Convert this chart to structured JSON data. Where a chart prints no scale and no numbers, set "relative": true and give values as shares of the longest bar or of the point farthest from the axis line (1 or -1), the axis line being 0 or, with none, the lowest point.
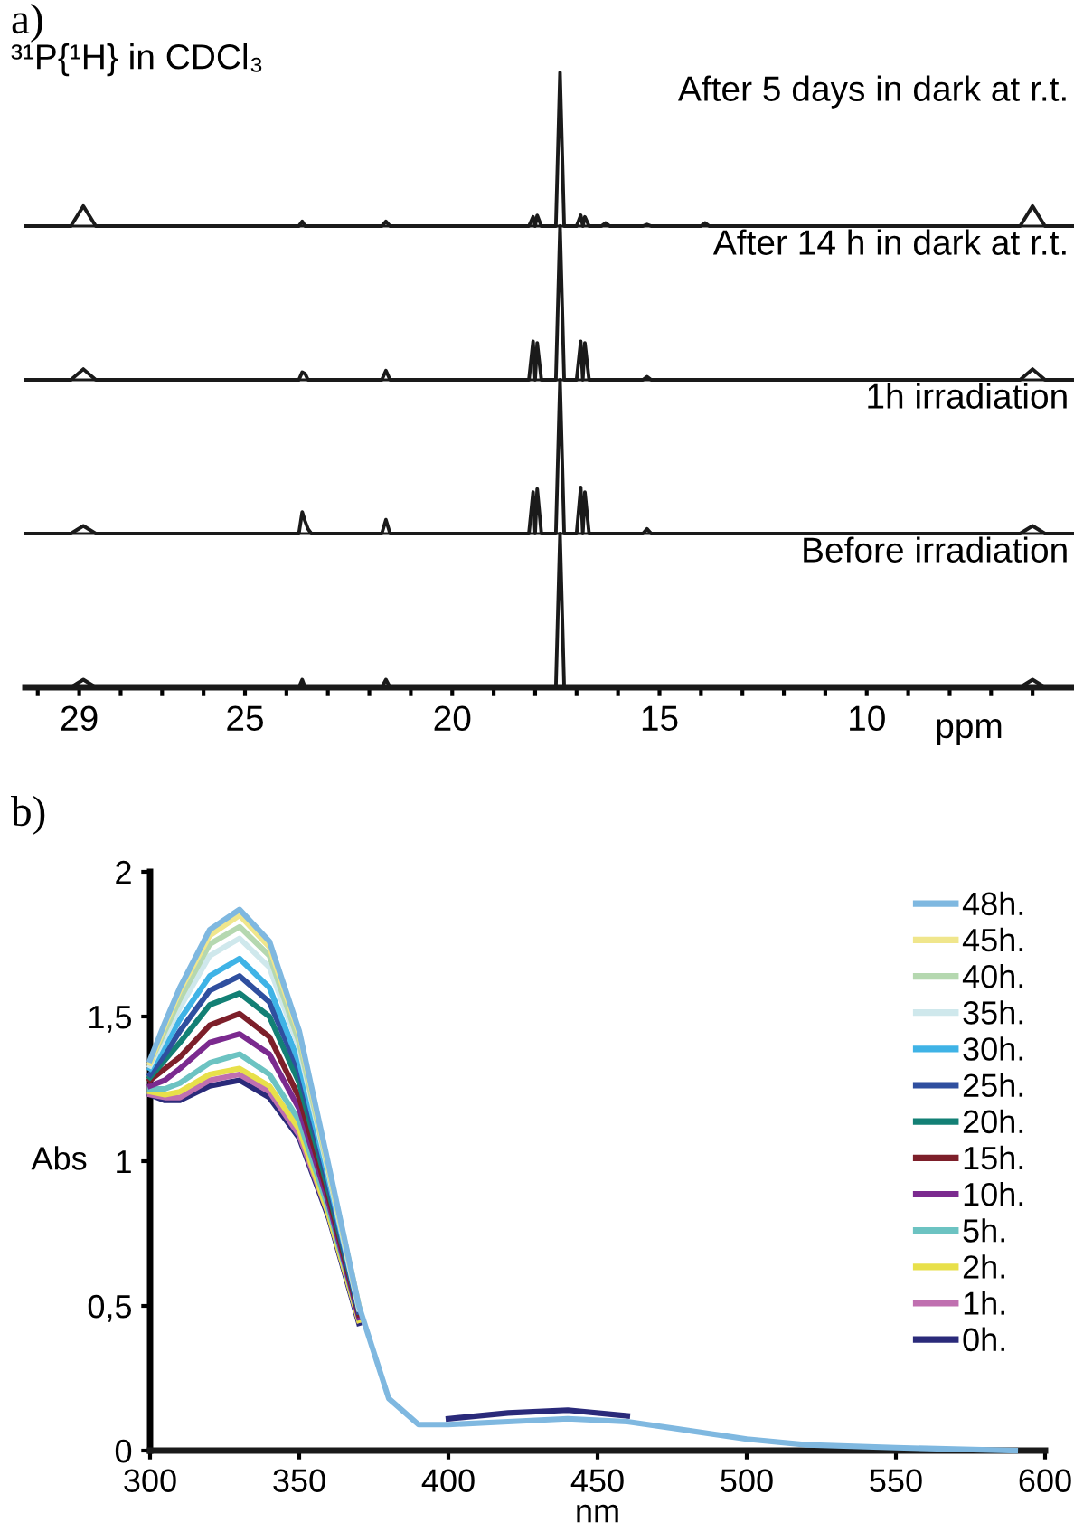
{
  "chart_data": [
    {
      "type": "line",
      "relative": true,
      "title": "a)",
      "subtitle": "³¹P{¹H} in CDCl₃",
      "annotations": [
        "After 5 days in dark at r.t."
      ],
      "tick_labels": false,
      "xlim": [
        30.3,
        5.0
      ],
      "x": [
        30.3,
        29.2,
        28.9,
        28.6,
        23.7,
        23.62,
        23.55,
        23.48,
        23.4,
        21.7,
        21.6,
        21.5,
        18.15,
        18.05,
        18.0,
        17.95,
        17.85,
        17.5,
        17.4,
        17.3,
        17.0,
        16.9,
        16.85,
        16.8,
        16.7,
        16.4,
        16.3,
        16.2,
        15.4,
        15.3,
        15.2,
        14.0,
        13.9,
        13.8,
        6.3,
        6.0,
        5.7,
        5.0
      ],
      "series": [
        {
          "color": "#1a1a1a",
          "values": [
            0,
            0,
            0.13,
            0,
            0,
            0.03,
            0,
            0,
            0,
            0,
            0.03,
            0,
            0,
            0.06,
            0,
            0.07,
            0,
            0,
            1,
            0,
            0,
            0.07,
            0,
            0.06,
            0,
            0,
            0.02,
            0,
            0,
            0.01,
            0,
            0,
            0.02,
            0,
            0,
            0.13,
            0,
            0
          ]
        }
      ]
    },
    {
      "type": "line",
      "relative": true,
      "annotations": [
        "After 14 h in dark at r.t."
      ],
      "tick_labels": false,
      "xlim": [
        30.3,
        5.0
      ],
      "x": [
        30.3,
        29.2,
        28.9,
        28.6,
        23.7,
        23.62,
        23.55,
        23.48,
        23.4,
        21.7,
        21.6,
        21.5,
        18.15,
        18.05,
        18.0,
        17.95,
        17.85,
        17.5,
        17.4,
        17.3,
        17.0,
        16.9,
        16.85,
        16.8,
        16.7,
        16.4,
        16.3,
        16.2,
        15.4,
        15.3,
        15.2,
        14.0,
        13.9,
        13.8,
        6.3,
        6.0,
        5.7,
        5.0
      ],
      "series": [
        {
          "color": "#1a1a1a",
          "values": [
            0,
            0,
            0.07,
            0,
            0,
            0.05,
            0.04,
            0,
            0,
            0,
            0.06,
            0,
            0,
            0.25,
            0,
            0.24,
            0,
            0,
            1,
            0,
            0,
            0.25,
            0,
            0.24,
            0,
            0,
            0,
            0,
            0,
            0.02,
            0,
            0,
            0,
            0,
            0,
            0.07,
            0,
            0
          ]
        }
      ]
    },
    {
      "type": "line",
      "relative": true,
      "annotations": [
        "1h irradiation"
      ],
      "tick_labels": false,
      "xlim": [
        30.3,
        5.0
      ],
      "x": [
        30.3,
        29.2,
        28.9,
        28.6,
        23.7,
        23.62,
        23.55,
        23.48,
        23.4,
        21.7,
        21.6,
        21.5,
        18.15,
        18.05,
        18.0,
        17.95,
        17.85,
        17.5,
        17.4,
        17.3,
        17.0,
        16.9,
        16.85,
        16.8,
        16.7,
        16.4,
        16.3,
        16.2,
        15.4,
        15.3,
        15.2,
        14.0,
        13.9,
        13.8,
        6.3,
        6.0,
        5.7,
        5.0
      ],
      "series": [
        {
          "color": "#1a1a1a",
          "values": [
            0,
            0,
            0.05,
            0,
            0,
            0.14,
            0.08,
            0.03,
            0,
            0,
            0.09,
            0,
            0,
            0.27,
            0,
            0.29,
            0,
            0,
            1,
            0,
            0,
            0.3,
            0,
            0.27,
            0,
            0,
            0,
            0,
            0,
            0.03,
            0,
            0,
            0,
            0,
            0,
            0.05,
            0,
            0
          ]
        }
      ]
    },
    {
      "type": "line",
      "relative": true,
      "annotations": [
        "Before irradiation"
      ],
      "tick_labels": "x",
      "xlabel": "ppm",
      "xlim": [
        30.3,
        5.0
      ],
      "xticks": [
        {
          "value": 30,
          "label": null
        },
        29,
        {
          "value": 28,
          "label": null
        },
        {
          "value": 27,
          "label": null
        },
        {
          "value": 26,
          "label": null
        },
        25,
        {
          "value": 24,
          "label": null
        },
        {
          "value": 23,
          "label": null
        },
        {
          "value": 22,
          "label": null
        },
        {
          "value": 21,
          "label": null
        },
        20,
        {
          "value": 19,
          "label": null
        },
        {
          "value": 18,
          "label": null
        },
        {
          "value": 17,
          "label": null
        },
        {
          "value": 16,
          "label": null
        },
        15,
        {
          "value": 14,
          "label": null
        },
        {
          "value": 13,
          "label": null
        },
        {
          "value": 12,
          "label": null
        },
        {
          "value": 11,
          "label": null
        },
        10,
        {
          "value": 9,
          "label": null
        },
        {
          "value": 8,
          "label": null
        },
        {
          "value": 7,
          "label": null
        },
        {
          "value": 6,
          "label": null
        }
      ],
      "x": [
        30.3,
        29.2,
        28.9,
        28.6,
        23.7,
        23.62,
        23.55,
        23.48,
        23.4,
        21.7,
        21.6,
        21.5,
        18.15,
        18.05,
        18.0,
        17.95,
        17.85,
        17.5,
        17.4,
        17.3,
        17.0,
        16.9,
        16.85,
        16.8,
        16.7,
        16.4,
        16.3,
        16.2,
        15.4,
        15.3,
        15.2,
        14.0,
        13.9,
        13.8,
        6.3,
        6.0,
        5.7,
        5.0
      ],
      "series": [
        {
          "color": "#1a1a1a",
          "values": [
            0,
            0,
            0.05,
            0,
            0,
            0.05,
            0,
            0,
            0,
            0,
            0.05,
            0,
            0,
            0,
            0,
            0,
            0,
            0,
            1,
            0,
            0,
            0,
            0,
            0,
            0,
            0,
            0,
            0,
            0,
            0,
            0,
            0,
            0,
            0,
            0,
            0.05,
            0,
            0
          ]
        }
      ]
    },
    {
      "type": "line",
      "title": "b)",
      "xlabel": "nm",
      "ylabel": "Abs",
      "legend": "top right",
      "xlim": [
        300,
        600
      ],
      "ylim": [
        0,
        2
      ],
      "xticks": [
        300,
        350,
        400,
        450,
        500,
        550,
        600
      ],
      "yticks": [
        0,
        {
          "value": 0.5,
          "label": "0,5"
        },
        1,
        {
          "value": 1.5,
          "label": "1,5"
        },
        2
      ],
      "x": [
        300,
        305,
        310,
        320,
        330,
        340,
        350,
        360,
        370,
        380,
        390,
        400,
        420,
        440,
        460,
        480,
        500,
        520,
        550,
        590
      ],
      "series": [
        {
          "name": "48h.",
          "color": "#7fb8e0",
          "values": [
            1.35,
            1.48,
            1.6,
            1.8,
            1.87,
            1.76,
            1.45,
            0.98,
            0.5,
            0.18,
            0.09,
            0.09,
            0.1,
            0.11,
            0.1,
            0.07,
            0.04,
            0.02,
            0.01,
            0
          ]
        },
        {
          "name": "45h.",
          "color": "#f0e68c",
          "values": [
            1.34,
            1.47,
            1.59,
            1.78,
            1.85,
            1.74,
            1.44,
            0.97,
            0.5,
            null,
            null,
            null,
            null,
            null,
            null,
            null,
            null,
            null,
            null,
            null
          ]
        },
        {
          "name": "40h.",
          "color": "#b5d8b0",
          "values": [
            1.34,
            1.45,
            1.56,
            1.75,
            1.81,
            1.71,
            1.41,
            0.96,
            0.5,
            null,
            null,
            null,
            null,
            null,
            null,
            null,
            null,
            null,
            null,
            null
          ]
        },
        {
          "name": "35h.",
          "color": "#cfe8ec",
          "values": [
            1.33,
            1.43,
            1.53,
            1.71,
            1.77,
            1.67,
            1.39,
            0.95,
            0.49,
            null,
            null,
            null,
            null,
            null,
            null,
            null,
            null,
            null,
            null,
            null
          ]
        },
        {
          "name": "30h.",
          "color": "#3fb3e6",
          "values": [
            1.32,
            1.4,
            1.49,
            1.64,
            1.7,
            1.6,
            1.34,
            0.93,
            0.49,
            null,
            null,
            null,
            null,
            null,
            null,
            null,
            null,
            null,
            null,
            null
          ]
        },
        {
          "name": "25h.",
          "color": "#2f4f9f",
          "values": [
            1.3,
            1.37,
            1.45,
            1.59,
            1.64,
            1.55,
            1.31,
            0.91,
            0.48,
            null,
            null,
            null,
            null,
            null,
            null,
            null,
            null,
            null,
            null,
            null
          ]
        },
        {
          "name": "20h.",
          "color": "#138075",
          "values": [
            1.29,
            1.35,
            1.41,
            1.54,
            1.58,
            1.5,
            1.27,
            0.89,
            0.48,
            null,
            null,
            null,
            null,
            null,
            null,
            null,
            null,
            null,
            null,
            null
          ]
        },
        {
          "name": "15h.",
          "color": "#7d1f2a",
          "values": [
            1.28,
            1.32,
            1.36,
            1.47,
            1.51,
            1.43,
            1.22,
            0.87,
            0.47,
            null,
            null,
            null,
            null,
            null,
            null,
            null,
            null,
            null,
            null,
            null
          ]
        },
        {
          "name": "10h.",
          "color": "#7b2a8f",
          "values": [
            1.26,
            1.28,
            1.32,
            1.41,
            1.44,
            1.37,
            1.18,
            0.85,
            0.46,
            null,
            null,
            null,
            null,
            null,
            null,
            null,
            null,
            null,
            null,
            null
          ]
        },
        {
          "name": "5h.",
          "color": "#6cc3c2",
          "values": [
            1.25,
            1.25,
            1.27,
            1.34,
            1.37,
            1.3,
            1.14,
            0.83,
            0.46,
            null,
            null,
            null,
            null,
            null,
            null,
            null,
            null,
            null,
            null,
            null
          ]
        },
        {
          "name": "2h.",
          "color": "#e8e04a",
          "values": [
            1.24,
            1.23,
            1.24,
            1.3,
            1.32,
            1.26,
            1.11,
            0.81,
            0.45,
            null,
            null,
            null,
            null,
            null,
            null,
            null,
            null,
            null,
            null,
            null
          ]
        },
        {
          "name": "1h.",
          "color": "#c070b0",
          "values": [
            1.23,
            1.22,
            1.22,
            1.28,
            1.3,
            1.24,
            1.09,
            0.81,
            0.45,
            null,
            null,
            null,
            null,
            null,
            null,
            null,
            null,
            null,
            null,
            null
          ]
        },
        {
          "name": "0h.",
          "color": "#2a2a7a",
          "values": [
            1.23,
            1.21,
            1.21,
            1.26,
            1.28,
            1.22,
            1.08,
            0.8,
            0.44,
            null,
            null,
            0.11,
            0.13,
            0.14,
            0.12,
            null,
            null,
            null,
            null,
            null
          ]
        }
      ]
    }
  ]
}
